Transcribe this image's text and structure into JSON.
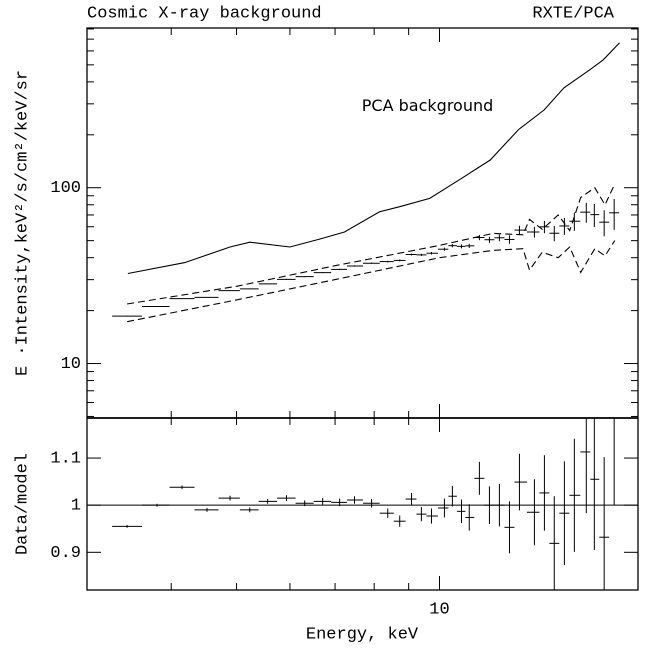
{
  "chart_data": [
    {
      "type": "line",
      "title": "Cosmic X-ray background",
      "subtitle": "RXTE/PCA",
      "y_label": "E ·Intensity,keV²/s/cm²/keV/sr",
      "log_x": true,
      "log_y": true,
      "xlim": [
        3,
        19.7
      ],
      "xticks": [
        10
      ],
      "xminor": [
        3,
        4,
        5,
        6,
        7,
        8,
        9
      ],
      "ylim": [
        4.9,
        810
      ],
      "yticks": [
        10,
        100
      ],
      "yminor": [
        5,
        6,
        7,
        8,
        9,
        20,
        30,
        40,
        50,
        60,
        70,
        80,
        90,
        200,
        300,
        400,
        500,
        600,
        700,
        800
      ],
      "series": [
        {
          "name": "PCA background",
          "color": "#000000",
          "style": "solid",
          "x": [
            3.45,
            4.19,
            4.89,
            5.23,
            6.0,
            6.64,
            7.23,
            8.15,
            8.73,
            9.67,
            10.7,
            11.9,
            13.1,
            14.3,
            15.3,
            16.7,
            17.5,
            18.5
          ],
          "values": [
            32.5,
            37.5,
            46,
            49,
            46,
            51,
            56,
            73,
            78,
            87,
            111,
            144,
            214,
            277,
            370,
            468,
            534,
            667
          ]
        },
        {
          "color": "#000000",
          "style": "cross",
          "x": [
            3.44,
            3.81,
            4.15,
            4.52,
            4.89,
            5.23,
            5.56,
            5.93,
            6.31,
            6.71,
            7.11,
            7.48,
            7.93,
            8.38,
            8.73,
            9.09,
            9.4,
            9.73,
            10.17,
            10.45,
            10.78,
            11.07,
            11.46,
            11.86,
            12.27,
            12.7,
            13.14,
            13.83,
            14.31,
            14.8,
            15.32,
            15.85,
            16.51,
            16.97,
            17.55,
            18.16
          ],
          "values": [
            18.6,
            21.1,
            23.4,
            23.8,
            26.0,
            26.6,
            28.4,
            30.1,
            31.2,
            32.9,
            34.3,
            35.9,
            37.2,
            38.0,
            38.6,
            41.7,
            41.5,
            42.4,
            44.7,
            46.8,
            46.4,
            46.7,
            52.1,
            50.6,
            51.9,
            50.8,
            57.4,
            56.0,
            59.9,
            55.1,
            60.6,
            64.5,
            72.6,
            70.3,
            63.7,
            72
          ],
          "errors": [
            0.1,
            0.1,
            0.1,
            0.1,
            0.1,
            0.1,
            0.1,
            0.2,
            0.2,
            0.2,
            0.3,
            0.3,
            0.3,
            0.4,
            0.5,
            0.5,
            0.6,
            0.7,
            0.9,
            1.0,
            1.2,
            1.3,
            1.8,
            2.0,
            2.3,
            2.8,
            3.4,
            3.9,
            4.8,
            5.5,
            6.7,
            7.7,
            9.4,
            10.5,
            10.8,
            14.4
          ]
        },
        {
          "color": "#000000",
          "style": "dashed",
          "x": [
            3.44,
            5,
            7,
            10,
            12,
            13.3,
            13.6,
            14.2,
            15,
            15.6,
            16.2,
            17,
            17.6,
            18.2
          ],
          "values": [
            21.8,
            27.5,
            36,
            47,
            55,
            54,
            66,
            58,
            70,
            57,
            88,
            100,
            80,
            105
          ]
        },
        {
          "color": "#000000",
          "style": "dashed",
          "x": [
            3.44,
            5,
            7,
            10,
            12,
            13.3,
            13.6,
            14.2,
            15,
            15.6,
            16.2,
            17,
            17.6,
            18.2
          ],
          "values": [
            17.3,
            23,
            30,
            40,
            44,
            45,
            34,
            43,
            40,
            46,
            33,
            45,
            41,
            50
          ]
        }
      ],
      "annotations": [
        {
          "text": "PCA background",
          "x": 9.6,
          "y": 290
        }
      ]
    },
    {
      "type": "scatter",
      "x_label": "Energy, keV",
      "y_label": "Data/model",
      "log_x": true,
      "xlim": [
        3,
        19.7
      ],
      "xticks": [
        10
      ],
      "xminor": [
        3,
        4,
        5,
        6,
        7,
        8,
        9
      ],
      "ylim": [
        0.82,
        1.185
      ],
      "yticks": [
        0.9,
        1,
        1.1
      ],
      "refline": 1,
      "color": "#000000",
      "x": [
        3.44,
        3.81,
        4.15,
        4.52,
        4.89,
        5.23,
        5.56,
        5.93,
        6.31,
        6.71,
        7.11,
        7.48,
        7.93,
        8.38,
        8.73,
        9.09,
        9.4,
        9.73,
        10.17,
        10.45,
        10.78,
        11.07,
        11.46,
        11.86,
        12.27,
        12.7,
        13.14,
        13.83,
        14.31,
        14.8,
        15.32,
        15.85,
        16.51,
        16.97,
        17.55,
        18.16
      ],
      "values": [
        0.955,
        1.0,
        1.038,
        0.99,
        1.015,
        0.99,
        1.008,
        1.015,
        1.004,
        1.008,
        1.006,
        1.011,
        1.004,
        0.983,
        0.966,
        1.013,
        0.981,
        0.977,
        0.994,
        1.019,
        0.987,
        0.974,
        1.057,
        1.0,
        1.0,
        0.953,
        1.049,
        0.985,
        1.026,
        0.919,
        0.983,
        1.021,
        1.113,
        1.055,
        0.932,
        1.2
      ],
      "errors": [
        0.003,
        0.003,
        0.004,
        0.004,
        0.005,
        0.005,
        0.005,
        0.006,
        0.006,
        0.007,
        0.008,
        0.008,
        0.009,
        0.01,
        0.012,
        0.013,
        0.015,
        0.016,
        0.02,
        0.022,
        0.025,
        0.028,
        0.035,
        0.04,
        0.045,
        0.055,
        0.06,
        0.07,
        0.08,
        0.1,
        0.11,
        0.12,
        0.13,
        0.15,
        0.17,
        0.2
      ]
    }
  ]
}
